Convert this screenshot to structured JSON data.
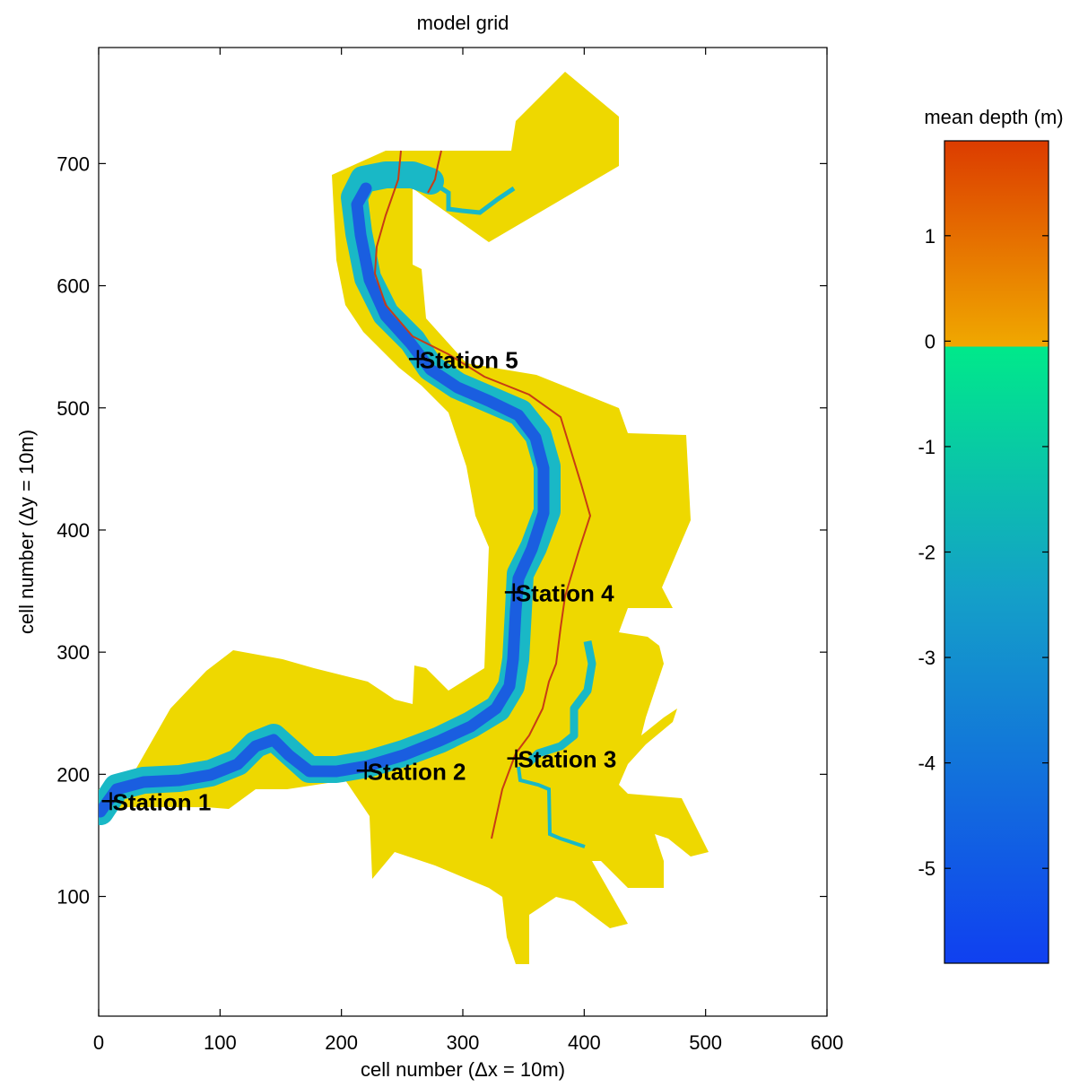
{
  "chart_data": {
    "type": "heatmap",
    "title": "model grid",
    "xlabel": "cell number  (Δx = 10m)",
    "ylabel": "cell number  (Δy = 10m)",
    "xlim": [
      0,
      600
    ],
    "ylim": [
      2,
      795
    ],
    "xticks": [
      0,
      100,
      200,
      300,
      400,
      500,
      600
    ],
    "yticks": [
      100,
      200,
      300,
      400,
      500,
      600,
      700
    ],
    "grid": false,
    "stations": [
      {
        "name": "Station 1",
        "x": 10,
        "y": 178
      },
      {
        "name": "Station 2",
        "x": 220,
        "y": 203
      },
      {
        "name": "Station 3",
        "x": 344,
        "y": 213
      },
      {
        "name": "Station 4",
        "x": 342,
        "y": 349
      },
      {
        "name": "Station 5",
        "x": 263,
        "y": 540
      }
    ],
    "colorbar": {
      "label": "mean depth (m)",
      "min": -5.9,
      "max": 1.9,
      "ticks": [
        1,
        0,
        -1,
        -2,
        -3,
        -4,
        -5
      ],
      "colors": [
        "#dc3c00",
        "#ffee00",
        "#00e98a",
        "#14a0c8",
        "#1040f0"
      ]
    },
    "land_color": "#eed800",
    "channel_color": "#1a5ee0",
    "shoal_color": "#19b8c6",
    "line_color": "#c83c14"
  }
}
